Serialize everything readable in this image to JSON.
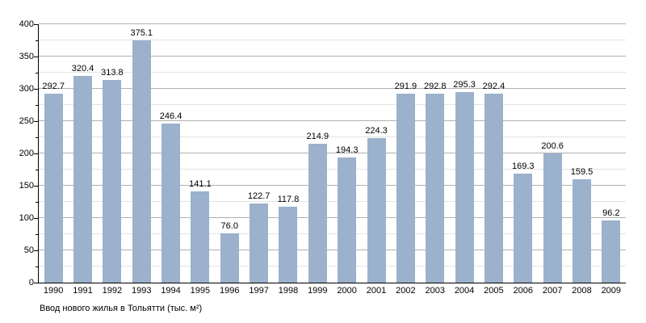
{
  "chart_data": {
    "type": "bar",
    "title": "Ввод нового жилья в Тольятти (тыс. м²)",
    "categories": [
      "1990",
      "1991",
      "1992",
      "1993",
      "1994",
      "1995",
      "1996",
      "1997",
      "1998",
      "1999",
      "2000",
      "2001",
      "2002",
      "2003",
      "2004",
      "2005",
      "2006",
      "2007",
      "2008",
      "2009"
    ],
    "values": [
      292.7,
      320.4,
      313.8,
      375.1,
      246.4,
      141.1,
      76.0,
      122.7,
      117.8,
      214.9,
      194.3,
      224.3,
      291.9,
      292.8,
      295.3,
      292.4,
      169.3,
      200.6,
      159.5,
      96.2
    ],
    "value_labels": [
      "292.7",
      "320.4",
      "313.8",
      "375.1",
      "246.4",
      "141.1",
      "76.0",
      "122.7",
      "117.8",
      "214.9",
      "194.3",
      "224.3",
      "291.9",
      "292.8",
      "295.3",
      "292.4",
      "169.3",
      "200.6",
      "159.5",
      "96.2"
    ],
    "xlabel": "",
    "ylabel": "",
    "ylim": [
      0,
      400
    ],
    "y_major_step": 50,
    "y_minor_step": 25,
    "y_tick_labels": [
      "0",
      "50",
      "100",
      "150",
      "200",
      "250",
      "300",
      "350",
      "400"
    ],
    "grid": true,
    "legend_position": "none",
    "bar_color": "#9BB1CC",
    "major_grid_color": "#b0b0b0",
    "minor_grid_color": "#e3e3e3",
    "axis_color": "#000000",
    "background_color": "#ffffff"
  }
}
